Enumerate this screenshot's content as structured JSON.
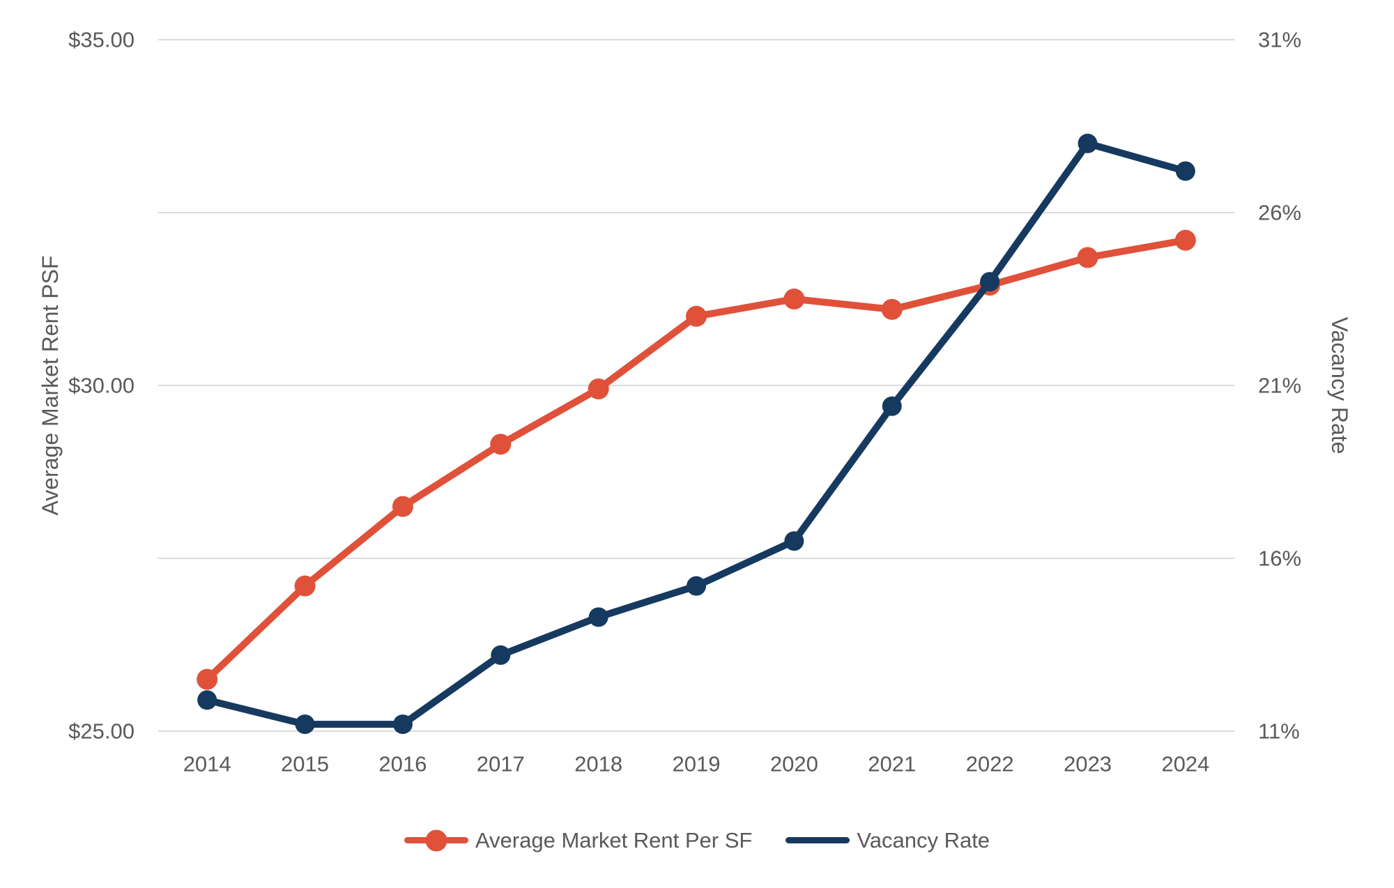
{
  "chart_data": {
    "type": "line",
    "title": "",
    "categories": [
      "2014",
      "2015",
      "2016",
      "2017",
      "2018",
      "2019",
      "2020",
      "2021",
      "2022",
      "2023",
      "2024"
    ],
    "series": [
      {
        "name": "Average Market Rent Per SF",
        "axis": "left",
        "color": "#E0513A",
        "marker": "circle",
        "marker_radius": 15,
        "line_width": 10,
        "values": [
          25.75,
          27.1,
          28.25,
          29.15,
          29.95,
          31.0,
          31.25,
          31.1,
          31.45,
          31.85,
          32.1
        ]
      },
      {
        "name": "Vacancy Rate",
        "axis": "right",
        "color": "#16395F",
        "marker": "circle",
        "marker_radius": 14,
        "line_width": 10,
        "values": [
          11.9,
          11.2,
          11.2,
          13.2,
          14.3,
          15.2,
          16.5,
          20.4,
          24.0,
          28.0,
          27.2
        ]
      }
    ],
    "left_axis": {
      "label": "Average Market Rent PSF",
      "min": 25,
      "max": 35,
      "ticks": [
        {
          "value": 25,
          "label": "$25.00"
        },
        {
          "value": 30,
          "label": "$30.00"
        },
        {
          "value": 35,
          "label": "$35.00"
        }
      ]
    },
    "right_axis": {
      "label": "Vacancy Rate",
      "min": 11,
      "max": 31,
      "ticks": [
        {
          "value": 11,
          "label": "11%"
        },
        {
          "value": 16,
          "label": "16%"
        },
        {
          "value": 21,
          "label": "21%"
        },
        {
          "value": 26,
          "label": "26%"
        },
        {
          "value": 31,
          "label": "31%"
        }
      ]
    },
    "grid": {
      "color": "#DBDBDB",
      "width": 2,
      "horizontal_only": true
    },
    "text_color": "#595959",
    "background": "#FFFFFF",
    "legend_position": "bottom-center"
  }
}
